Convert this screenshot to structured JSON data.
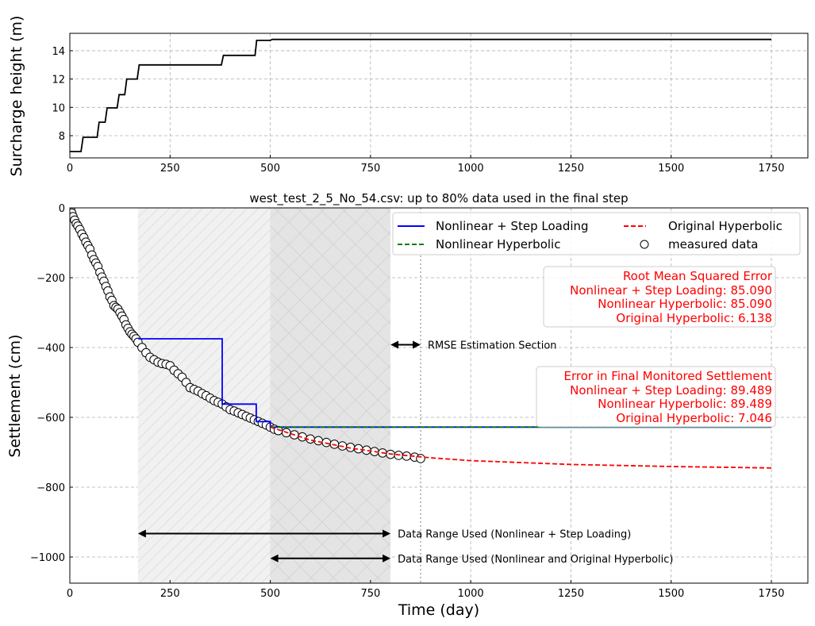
{
  "chart_data": [
    {
      "type": "line",
      "ylabel": "Surcharge height (m)",
      "xlim": [
        0,
        1841
      ],
      "ylim": [
        6.43,
        15.23
      ],
      "xticks": [
        0,
        250,
        500,
        750,
        1000,
        1250,
        1500,
        1750
      ],
      "yticks": [
        8,
        10,
        12,
        14
      ],
      "grid": true,
      "series": [
        {
          "color": "#000000",
          "style": "solid",
          "x": [
            0,
            28,
            33,
            68,
            73,
            88,
            93,
            118,
            123,
            137,
            142,
            168,
            173,
            378,
            383,
            462,
            466,
            500,
            505,
            1750
          ],
          "y": [
            6.88,
            6.88,
            7.89,
            7.89,
            8.95,
            8.95,
            9.96,
            9.96,
            10.9,
            10.9,
            12.0,
            12.0,
            13.0,
            13.0,
            13.67,
            13.67,
            14.73,
            14.73,
            14.8,
            14.8
          ]
        }
      ]
    },
    {
      "type": "line",
      "title": "west_test_2_5_No_54.csv: up to 80% data used in the final step",
      "xlabel": "Time (day)",
      "ylabel": "Settlement (cm)",
      "xlim": [
        0,
        1841
      ],
      "ylim": [
        -1075,
        0
      ],
      "xticks": [
        0,
        250,
        500,
        750,
        1000,
        1250,
        1500,
        1750
      ],
      "yticks": [
        0,
        -200,
        -400,
        -600,
        -800,
        -1000
      ],
      "grid": true,
      "legend_placement": "top-right",
      "series": [
        {
          "name": "Nonlinear + Step Loading",
          "color": "#0000ff",
          "style": "solid",
          "x": [
            170,
            380,
            380,
            465,
            465,
            500,
            500,
            1750
          ],
          "y": [
            -375,
            -375,
            -562,
            -562,
            -612,
            -612,
            -628,
            -628
          ]
        },
        {
          "name": "Nonlinear Hyperbolic",
          "color": "#008000",
          "style": "dashed",
          "x": [
            500,
            1750
          ],
          "y": [
            -628,
            -628
          ]
        },
        {
          "name": "Original Hyperbolic",
          "color": "#ff0000",
          "style": "dashed",
          "x": [
            500,
            600,
            700,
            800,
            900,
            1000,
            1250,
            1500,
            1750
          ],
          "y": [
            -628,
            -665,
            -688,
            -705,
            -716,
            -724,
            -735,
            -741,
            -745
          ]
        },
        {
          "name": "measured data",
          "color": "#000000",
          "style": "marker",
          "x": [
            2,
            5,
            8,
            12,
            16,
            20,
            25,
            30,
            35,
            40,
            45,
            50,
            55,
            60,
            65,
            70,
            75,
            80,
            85,
            90,
            95,
            100,
            105,
            110,
            115,
            120,
            125,
            130,
            135,
            140,
            145,
            150,
            155,
            160,
            165,
            170,
            180,
            190,
            200,
            210,
            220,
            230,
            240,
            250,
            260,
            270,
            280,
            290,
            300,
            310,
            320,
            330,
            340,
            350,
            360,
            370,
            380,
            390,
            400,
            410,
            420,
            430,
            440,
            450,
            460,
            470,
            480,
            490,
            500,
            510,
            520,
            540,
            560,
            580,
            600,
            620,
            640,
            660,
            680,
            700,
            720,
            740,
            760,
            780,
            800,
            820,
            840,
            860,
            875
          ],
          "y": [
            -5,
            -15,
            -25,
            -35,
            -45,
            -52,
            -62,
            -75,
            -85,
            -98,
            -108,
            -118,
            -135,
            -148,
            -158,
            -168,
            -185,
            -198,
            -210,
            -225,
            -238,
            -255,
            -265,
            -280,
            -285,
            -290,
            -300,
            -310,
            -320,
            -335,
            -345,
            -355,
            -362,
            -368,
            -375,
            -385,
            -400,
            -415,
            -428,
            -435,
            -442,
            -446,
            -448,
            -452,
            -465,
            -475,
            -485,
            -500,
            -515,
            -520,
            -525,
            -532,
            -538,
            -545,
            -552,
            -557,
            -562,
            -570,
            -578,
            -582,
            -587,
            -592,
            -597,
            -602,
            -607,
            -612,
            -617,
            -622,
            -628,
            -634,
            -638,
            -644,
            -650,
            -656,
            -662,
            -667,
            -672,
            -677,
            -682,
            -686,
            -690,
            -694,
            -698,
            -702,
            -706,
            -709,
            -711,
            -714,
            -718
          ]
        }
      ],
      "shaded_regions": [
        {
          "x": [
            170,
            500
          ],
          "hatch": "diagonal",
          "color": "#f1f1f1"
        },
        {
          "x": [
            500,
            800
          ],
          "hatch": "cross",
          "color": "#e4e4e4"
        }
      ],
      "vertical_line": {
        "x": 875,
        "style": "dotted",
        "color": "#aaaaaa"
      },
      "annotations": [
        {
          "text": "RMSE Estimation Section",
          "arrow_x": [
            800,
            875
          ],
          "y": -392
        },
        {
          "text": "Data Range Used (Nonlinear + Step Loading)",
          "arrow_x": [
            170,
            800
          ],
          "y": -933
        },
        {
          "text": "Data Range Used (Nonlinear and Original Hyperbolic)",
          "arrow_x": [
            500,
            800
          ],
          "y": -1004
        }
      ],
      "text_boxes": [
        {
          "color": "#ff0000",
          "lines": [
            "Root Mean Squared Error",
            "Nonlinear + Step Loading: 85.090",
            "Nonlinear Hyperbolic: 85.090",
            "Original Hyperbolic: 6.138"
          ]
        },
        {
          "color": "#ff0000",
          "lines": [
            "Error in Final Monitored Settlement",
            "Nonlinear + Step Loading: 89.489",
            "Nonlinear Hyperbolic: 89.489",
            "Original Hyperbolic: 7.046"
          ]
        }
      ]
    }
  ]
}
